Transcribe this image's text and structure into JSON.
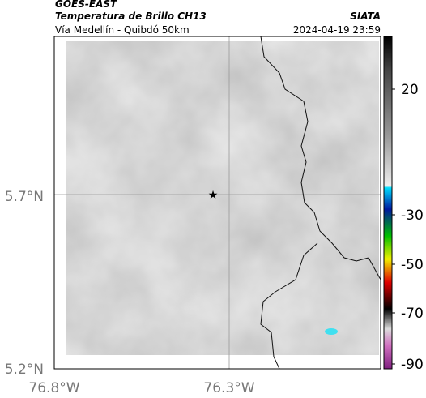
{
  "header": {
    "title": "GOES-EAST",
    "subtitle": "Temperatura de Brillo CH13",
    "source": "SIATA",
    "region": "Vía Medellín - Quibdó 50km",
    "timestamp": "2024-04-19 23:59"
  },
  "map": {
    "lat_labels": [
      "5.7°N",
      "5.2°N"
    ],
    "lon_labels": [
      "76.8°W",
      "76.3°W"
    ]
  },
  "colorbar": {
    "labels": [
      20,
      -30,
      -50,
      -70,
      -90
    ]
  }
}
